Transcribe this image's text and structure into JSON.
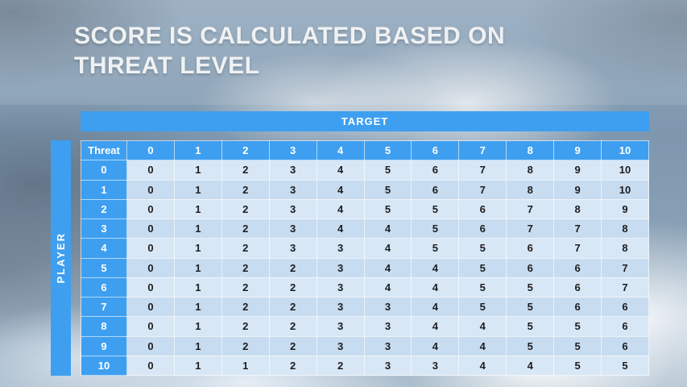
{
  "slide": {
    "title_line1": "SCORE IS CALCULATED BASED ON",
    "title_line2": "THREAT LEVEL",
    "target_label": "TARGET",
    "player_label": "PLAYER"
  },
  "colors": {
    "accent_blue": "#3E9FF0",
    "row_band_light": "#D8E7F6",
    "row_band_dark": "#C7DCF0",
    "title_text": "#EFF1F3"
  },
  "chart_data": {
    "type": "table",
    "title": "SCORE IS CALCULATED BASED ON THREAT LEVEL",
    "column_group_label": "TARGET",
    "row_group_label": "PLAYER",
    "corner_label": "Threat",
    "columns": [
      "0",
      "1",
      "2",
      "3",
      "4",
      "5",
      "6",
      "7",
      "8",
      "9",
      "10"
    ],
    "rows": [
      {
        "label": "0",
        "values": [
          0,
          1,
          2,
          3,
          4,
          5,
          6,
          7,
          8,
          9,
          10
        ]
      },
      {
        "label": "1",
        "values": [
          0,
          1,
          2,
          3,
          4,
          5,
          6,
          7,
          8,
          9,
          10
        ]
      },
      {
        "label": "2",
        "values": [
          0,
          1,
          2,
          3,
          4,
          5,
          5,
          6,
          7,
          8,
          9
        ]
      },
      {
        "label": "3",
        "values": [
          0,
          1,
          2,
          3,
          4,
          4,
          5,
          6,
          7,
          7,
          8
        ]
      },
      {
        "label": "4",
        "values": [
          0,
          1,
          2,
          3,
          3,
          4,
          5,
          5,
          6,
          7,
          8
        ]
      },
      {
        "label": "5",
        "values": [
          0,
          1,
          2,
          2,
          3,
          4,
          4,
          5,
          6,
          6,
          7
        ]
      },
      {
        "label": "6",
        "values": [
          0,
          1,
          2,
          2,
          3,
          4,
          4,
          5,
          5,
          6,
          7
        ]
      },
      {
        "label": "7",
        "values": [
          0,
          1,
          2,
          2,
          3,
          3,
          4,
          5,
          5,
          6,
          6
        ]
      },
      {
        "label": "8",
        "values": [
          0,
          1,
          2,
          2,
          3,
          3,
          4,
          4,
          5,
          5,
          6
        ]
      },
      {
        "label": "9",
        "values": [
          0,
          1,
          2,
          2,
          3,
          3,
          4,
          4,
          5,
          5,
          6
        ]
      },
      {
        "label": "10",
        "values": [
          0,
          1,
          1,
          2,
          2,
          3,
          3,
          4,
          4,
          5,
          5
        ]
      }
    ]
  }
}
